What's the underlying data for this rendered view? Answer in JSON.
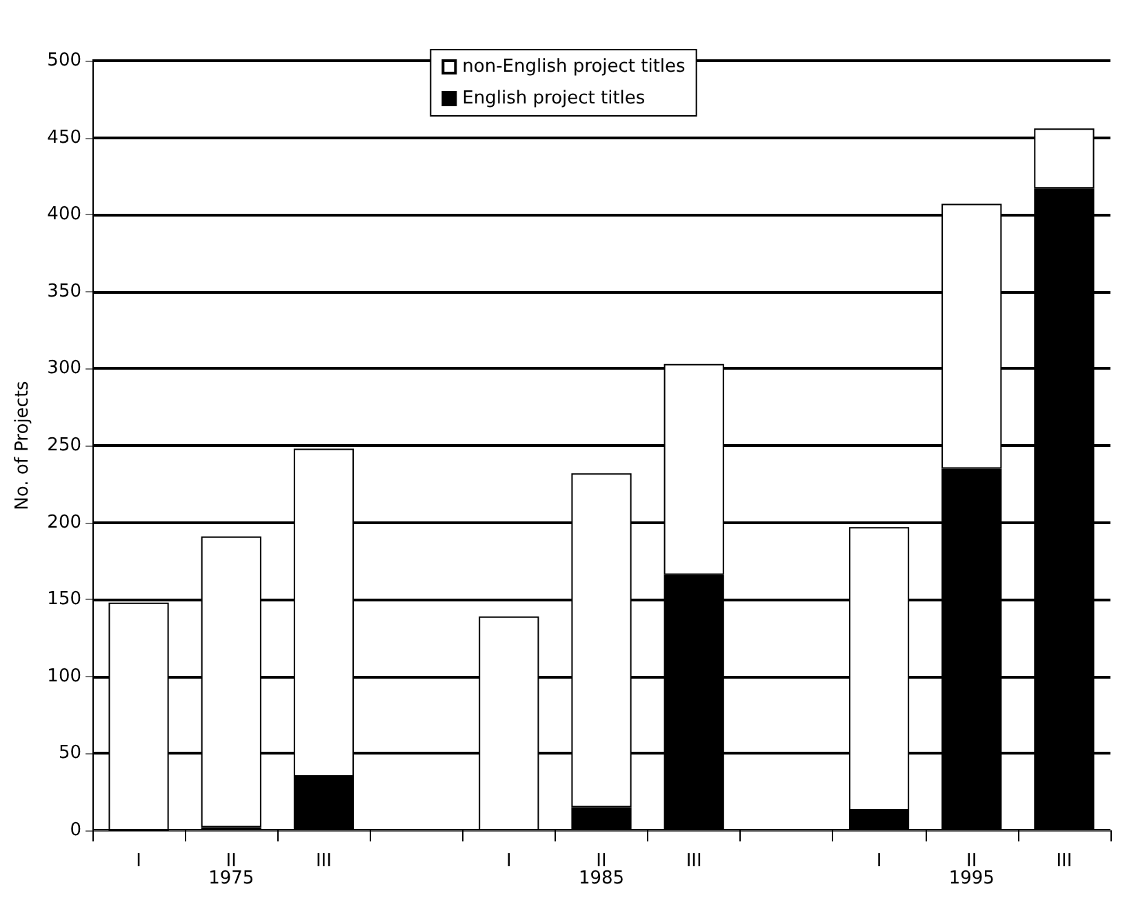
{
  "chart_data": {
    "type": "bar",
    "stacked": true,
    "ylabel": "No. of Projects",
    "categories": [
      "I",
      "II",
      "III",
      null,
      "I",
      "II",
      "III",
      null,
      "I",
      "II",
      "III"
    ],
    "series": [
      {
        "name": "English project titles",
        "color": "#000000",
        "values": [
          0,
          2,
          35,
          null,
          null,
          15,
          166,
          null,
          13,
          235,
          417
        ]
      },
      {
        "name": "non-English project titles",
        "color": "#ffffff",
        "values": [
          148,
          189,
          213,
          null,
          139,
          217,
          137,
          null,
          184,
          172,
          39
        ]
      }
    ],
    "annotations": [
      "1975",
      "1985",
      "1995"
    ],
    "ylim": [
      0,
      500
    ],
    "yticks": [
      0,
      50,
      100,
      150,
      200,
      250,
      300,
      350,
      400,
      450,
      500
    ],
    "grid": "y",
    "legend": "top"
  }
}
